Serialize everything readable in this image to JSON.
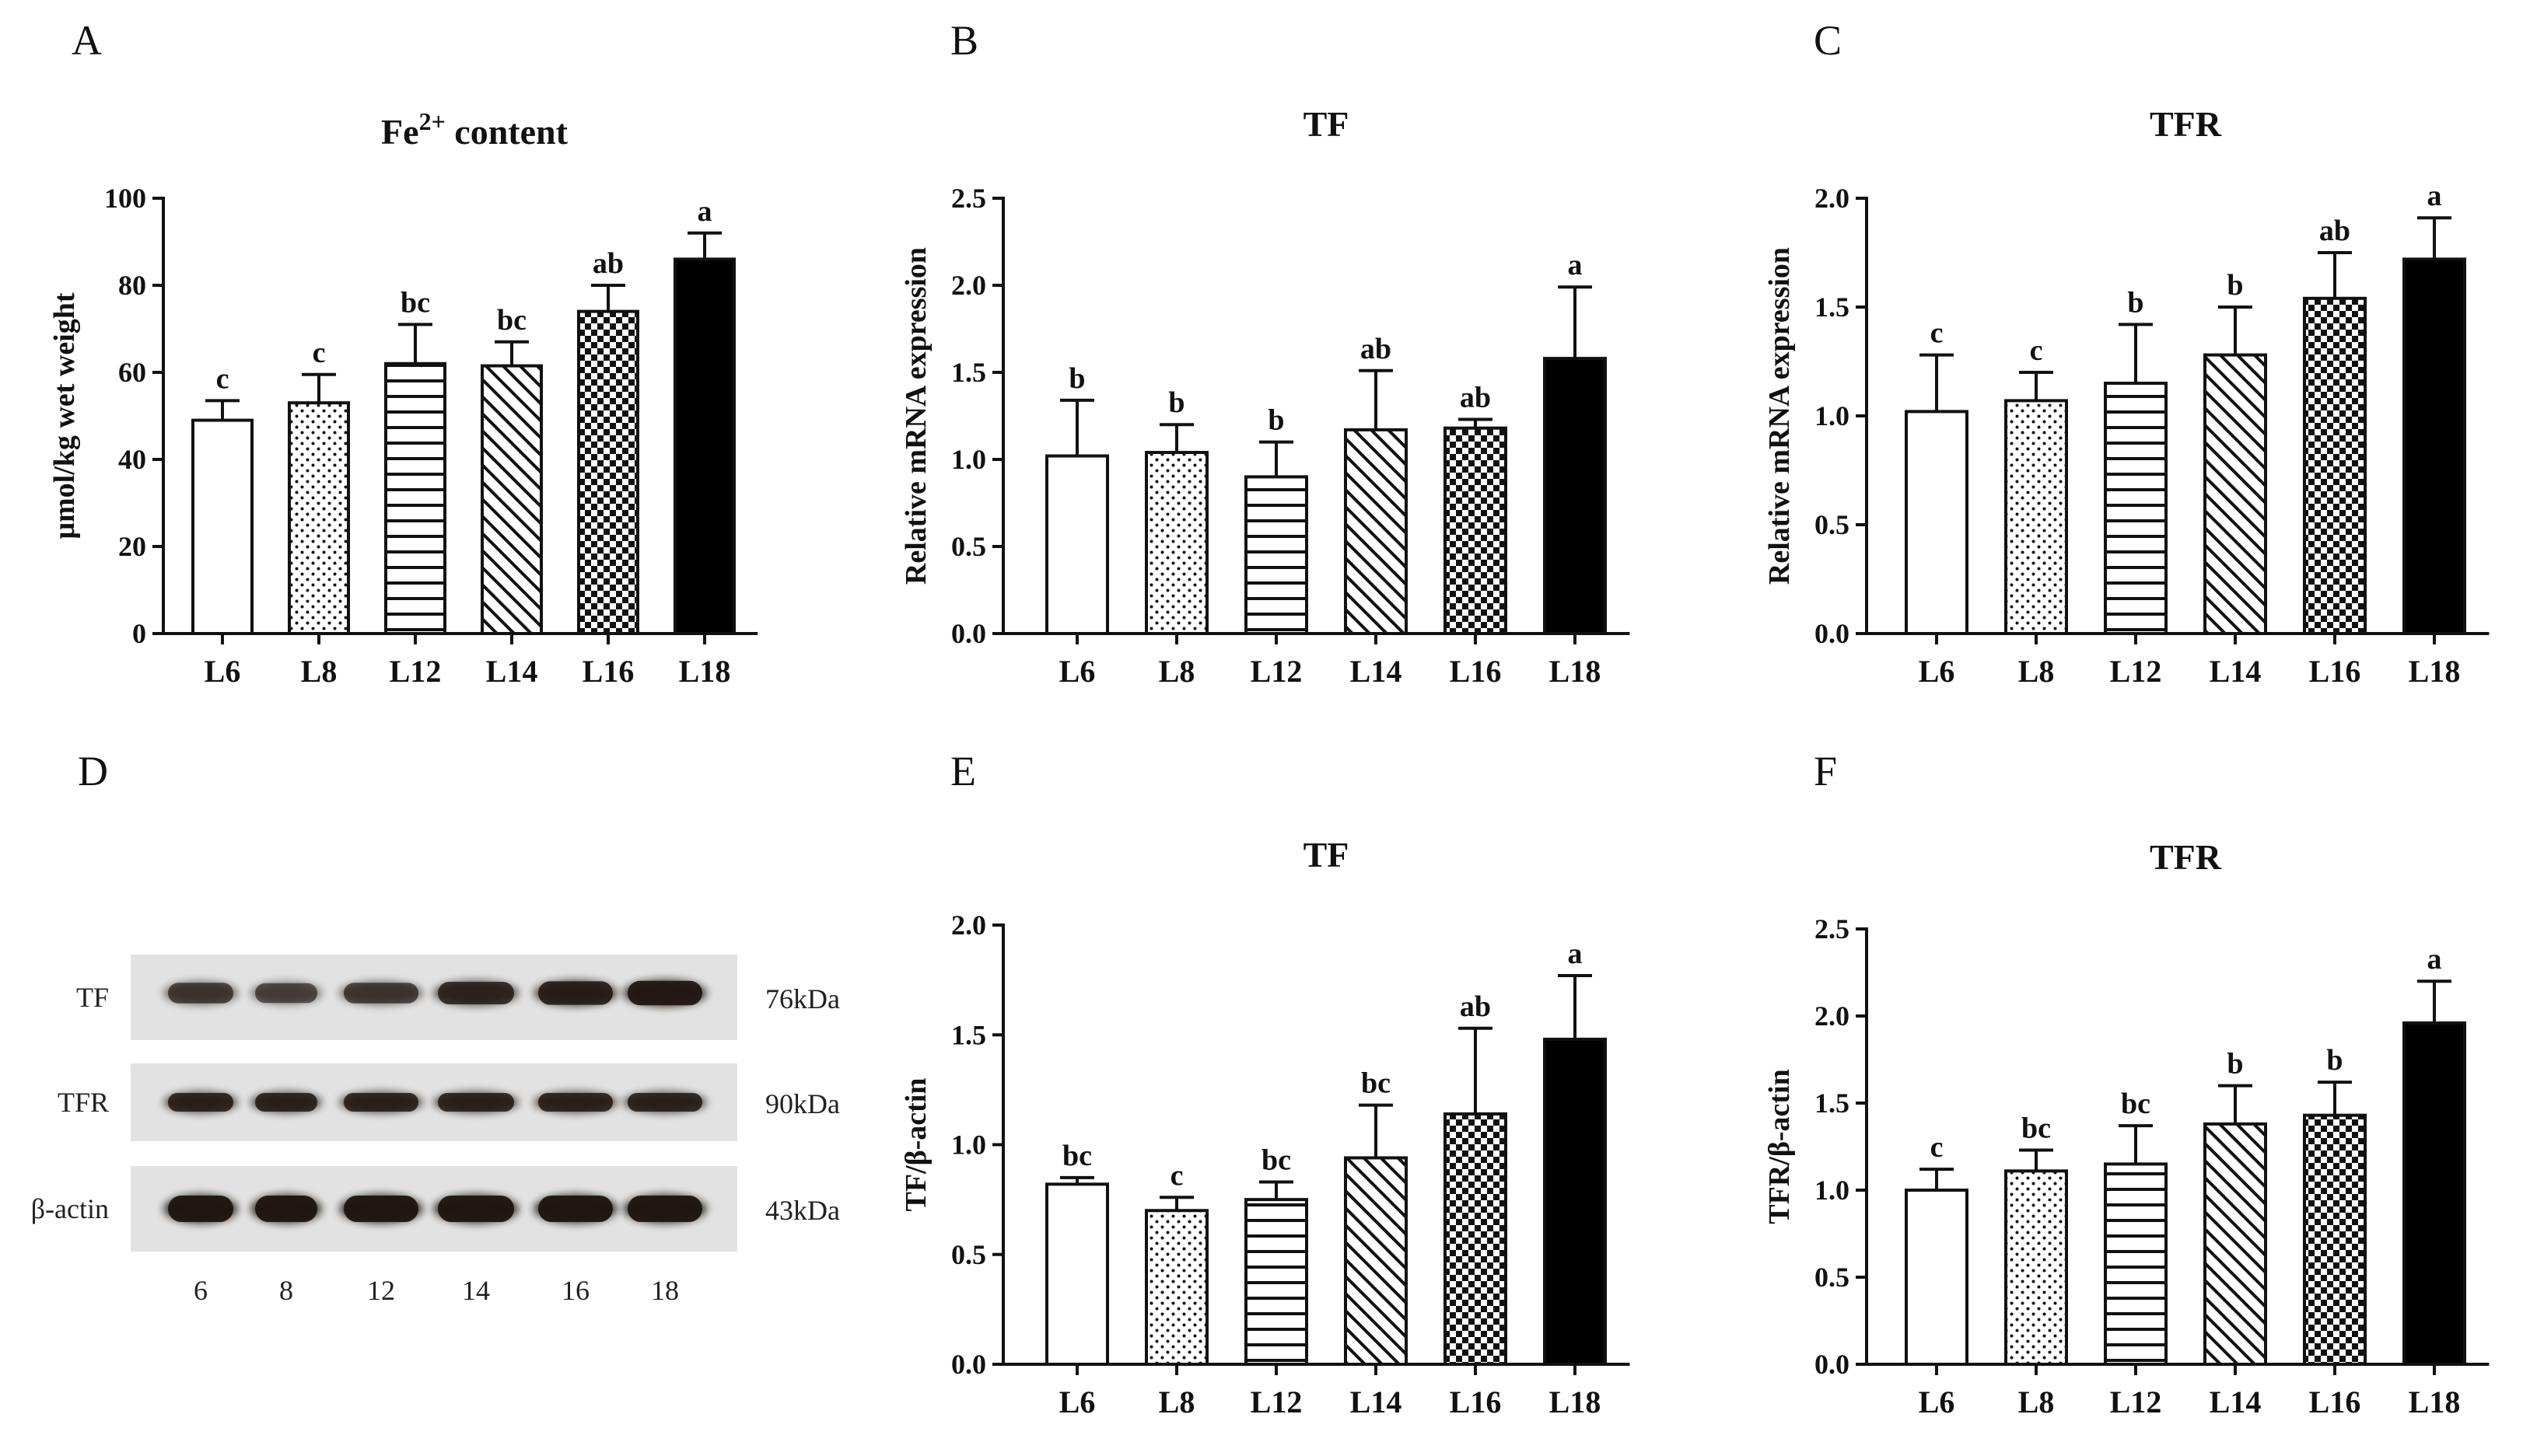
{
  "panels": [
    {
      "letter": "A"
    },
    {
      "letter": "B"
    },
    {
      "letter": "C"
    },
    {
      "letter": "D"
    },
    {
      "letter": "E"
    },
    {
      "letter": "F"
    }
  ],
  "chart_data": [
    {
      "panel": "A",
      "type": "bar",
      "title": "Fe",
      "title_sup": "2+",
      "title_suffix": " content",
      "ylabel": "μmol/kg wet weight",
      "xlabel": "",
      "ylim": [
        0,
        100
      ],
      "yticks": [
        "0",
        "20",
        "40",
        "60",
        "80",
        "100"
      ],
      "categories": [
        "L6",
        "L8",
        "L12",
        "L14",
        "L16",
        "L18"
      ],
      "values": [
        49,
        53,
        62,
        61.5,
        74,
        86
      ],
      "errors": [
        4.5,
        6.5,
        9,
        5.5,
        6,
        6
      ],
      "letters": [
        "c",
        "c",
        "bc",
        "bc",
        "ab",
        "a"
      ]
    },
    {
      "panel": "B",
      "type": "bar",
      "title": "TF",
      "ylabel": "Relative  mRNA expression",
      "xlabel": "",
      "ylim": [
        0,
        2.5
      ],
      "yticks": [
        "0.0",
        "0.5",
        "1.0",
        "1.5",
        "2.0",
        "2.5"
      ],
      "categories": [
        "L6",
        "L8",
        "L12",
        "L14",
        "L16",
        "L18"
      ],
      "values": [
        1.02,
        1.04,
        0.9,
        1.17,
        1.18,
        1.58
      ],
      "errors": [
        0.32,
        0.16,
        0.2,
        0.34,
        0.05,
        0.41
      ],
      "letters": [
        "b",
        "b",
        "b",
        "ab",
        "ab",
        "a"
      ]
    },
    {
      "panel": "C",
      "type": "bar",
      "title": "TFR",
      "ylabel": "Relative  mRNA expression",
      "xlabel": "",
      "ylim": [
        0,
        2.0
      ],
      "yticks": [
        "0.0",
        "0.5",
        "1.0",
        "1.5",
        "2.0"
      ],
      "categories": [
        "L6",
        "L8",
        "L12",
        "L14",
        "L16",
        "L18"
      ],
      "values": [
        1.02,
        1.07,
        1.15,
        1.28,
        1.54,
        1.72
      ],
      "errors": [
        0.26,
        0.13,
        0.27,
        0.22,
        0.21,
        0.19
      ],
      "letters": [
        "c",
        "c",
        "b",
        "b",
        "ab",
        "a"
      ]
    },
    {
      "panel": "E",
      "type": "bar",
      "title": "TF",
      "ylabel": "TF/β-actin",
      "xlabel": "",
      "ylim": [
        0,
        2.0
      ],
      "yticks": [
        "0.0",
        "0.5",
        "1.0",
        "1.5",
        "2.0"
      ],
      "categories": [
        "L6",
        "L8",
        "L12",
        "L14",
        "L16",
        "L18"
      ],
      "values": [
        0.82,
        0.7,
        0.75,
        0.94,
        1.14,
        1.48
      ],
      "errors": [
        0.03,
        0.06,
        0.08,
        0.24,
        0.39,
        0.29
      ],
      "letters": [
        "bc",
        "c",
        "bc",
        "bc",
        "ab",
        "a"
      ]
    },
    {
      "panel": "F",
      "type": "bar",
      "title": "TFR",
      "ylabel": "TFR/β-actin",
      "xlabel": "",
      "ylim": [
        0,
        2.5
      ],
      "yticks": [
        "0.0",
        "0.5",
        "1.0",
        "1.5",
        "2.0",
        "2.5"
      ],
      "categories": [
        "L6",
        "L8",
        "L12",
        "L14",
        "L16",
        "L18"
      ],
      "values": [
        1.0,
        1.11,
        1.15,
        1.38,
        1.43,
        1.96
      ],
      "errors": [
        0.12,
        0.12,
        0.22,
        0.22,
        0.19,
        0.24
      ],
      "letters": [
        "c",
        "bc",
        "bc",
        "b",
        "b",
        "a"
      ]
    }
  ],
  "blot": {
    "rows": [
      {
        "protein": "TF",
        "kda": "76kDa",
        "intensity": [
          0.55,
          0.45,
          0.55,
          0.75,
          0.85,
          0.95
        ]
      },
      {
        "protein": "TFR",
        "kda": "90kDa",
        "intensity": [
          0.8,
          0.8,
          0.8,
          0.8,
          0.8,
          0.8
        ]
      },
      {
        "protein": "β-actin",
        "kda": "43kDa",
        "intensity": [
          1,
          1,
          1,
          1,
          1,
          1
        ]
      }
    ],
    "lanes": [
      "6",
      "8",
      "12",
      "14",
      "16",
      "18"
    ]
  },
  "colors": {
    "ink": "#111111",
    "fill_solid": "#000000",
    "blot_bg": "#e2e2e2",
    "band": "#1e1410"
  }
}
